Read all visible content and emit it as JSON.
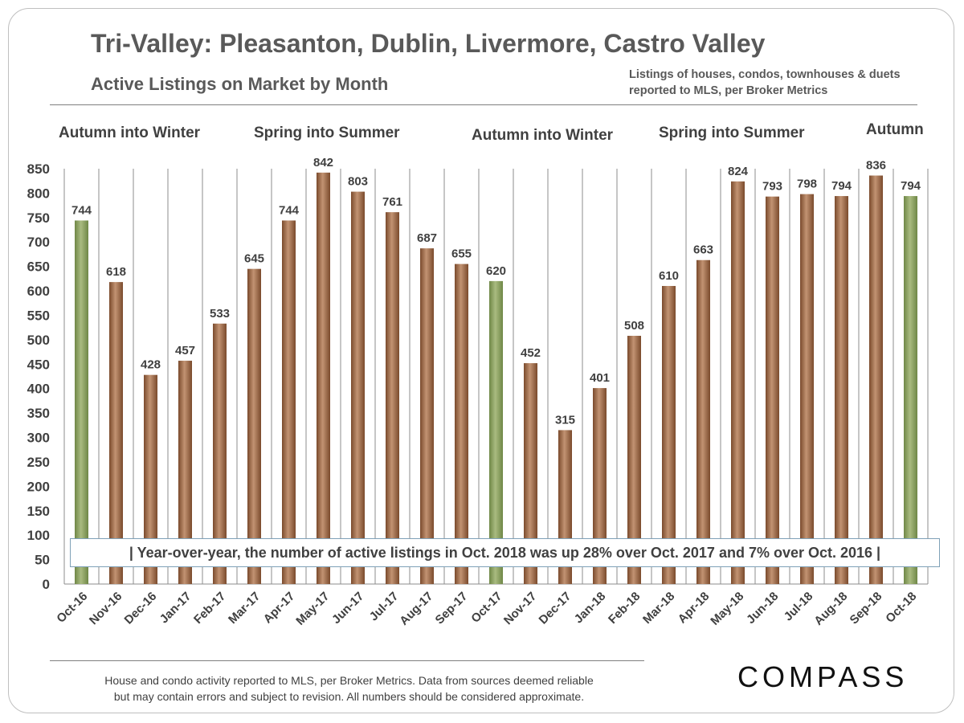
{
  "title": "Tri-Valley: Pleasanton, Dublin, Livermore, Castro Valley",
  "subtitle": "Active Listings on Market by Month",
  "note": "Listings of houses, condos, townhouses & duets reported to MLS, per Broker Metrics",
  "seasons": [
    "Autumn  into Winter",
    "Spring  into  Summer",
    "Autumn  into Winter",
    "Spring  into  Summer",
    "Autumn"
  ],
  "callout": "|  Year-over-year, the number of active listings in Oct. 2018 was up 28% over Oct. 2017 and 7% over Oct. 2016  |",
  "footer": {
    "line1": "House and condo activity reported to MLS, per Broker Metrics. Data from sources deemed reliable",
    "line2": "but may contain errors and subject to revision.  All numbers should be considered approximate."
  },
  "logo": "COMPASS",
  "colors": {
    "bar_brown": "#9c6a46",
    "bar_green": "#8ca05e",
    "grid": "#7f7f7f",
    "text": "#404040"
  },
  "chart_data": {
    "type": "bar",
    "title": "Active Listings on Market by Month",
    "categories": [
      "Oct-16",
      "Nov-16",
      "Dec-16",
      "Jan-17",
      "Feb-17",
      "Mar-17",
      "Apr-17",
      "May-17",
      "Jun-17",
      "Jul-17",
      "Aug-17",
      "Sep-17",
      "Oct-17",
      "Nov-17",
      "Dec-17",
      "Jan-18",
      "Feb-18",
      "Mar-18",
      "Apr-18",
      "May-18",
      "Jun-18",
      "Jul-18",
      "Aug-18",
      "Sep-18",
      "Oct-18"
    ],
    "values": [
      744,
      618,
      428,
      457,
      533,
      645,
      744,
      842,
      803,
      761,
      687,
      655,
      620,
      452,
      315,
      401,
      508,
      610,
      663,
      824,
      793,
      798,
      794,
      836,
      794
    ],
    "highlight": [
      "Oct-16",
      "Oct-17",
      "Oct-18"
    ],
    "ylim": [
      0,
      850
    ],
    "yticks": [
      0,
      50,
      100,
      150,
      200,
      250,
      300,
      350,
      400,
      450,
      500,
      550,
      600,
      650,
      700,
      750,
      800,
      850
    ],
    "grid": "vertical separators between categories",
    "data_labels": true
  }
}
